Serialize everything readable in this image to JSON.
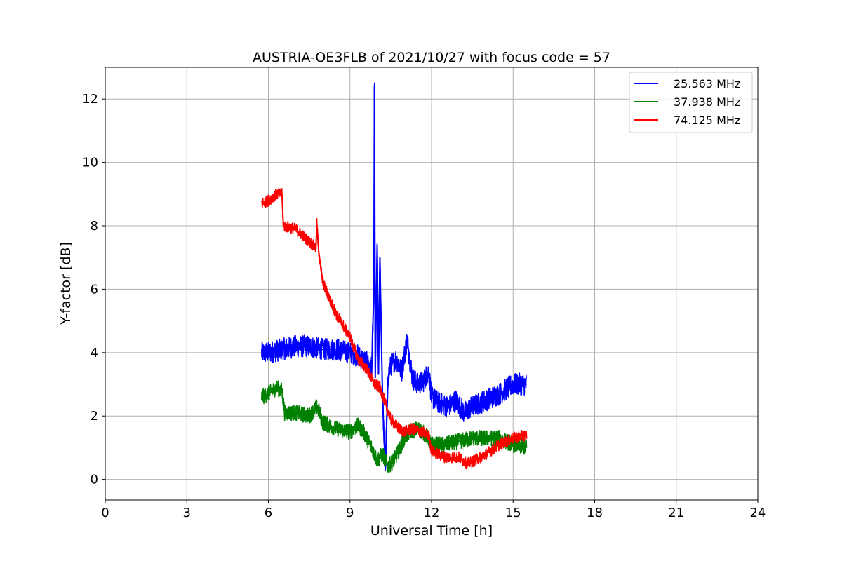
{
  "chart_data": {
    "type": "line",
    "title": "AUSTRIA-OE3FLB of 2021/10/27 with focus code = 57",
    "xlabel": "Universal Time [h]",
    "ylabel": "Y-factor [dB]",
    "xlim": [
      0,
      24
    ],
    "ylim": [
      -0.65,
      13
    ],
    "xticks": [
      0,
      3,
      6,
      9,
      12,
      15,
      18,
      21,
      24
    ],
    "yticks": [
      0,
      2,
      4,
      6,
      8,
      10,
      12
    ],
    "grid": true,
    "legend_position": "top-right",
    "series": [
      {
        "name": "25.563 MHz",
        "color": "#0000ff",
        "noise": 0.35,
        "x": [
          5.75,
          6.0,
          6.5,
          7.0,
          7.5,
          8.0,
          8.5,
          9.0,
          9.3,
          9.6,
          9.8,
          9.88,
          9.9,
          9.93,
          10.0,
          10.05,
          10.1,
          10.2,
          10.3,
          10.4,
          10.5,
          10.7,
          10.9,
          11.1,
          11.3,
          11.5,
          11.7,
          11.9,
          12.0,
          12.3,
          12.6,
          12.9,
          13.2,
          13.5,
          14.0,
          14.5,
          15.0,
          15.5
        ],
        "y": [
          4.0,
          4.0,
          4.1,
          4.2,
          4.2,
          4.1,
          4.1,
          4.0,
          3.9,
          3.7,
          3.5,
          6.0,
          12.4,
          3.2,
          7.4,
          3.3,
          7.0,
          2.5,
          0.3,
          3.2,
          3.6,
          3.8,
          3.4,
          4.4,
          3.2,
          3.0,
          3.1,
          3.4,
          2.6,
          2.4,
          2.3,
          2.5,
          2.1,
          2.3,
          2.5,
          2.7,
          3.0,
          3.0
        ]
      },
      {
        "name": "37.938 MHz",
        "color": "#008000",
        "noise": 0.25,
        "x": [
          5.75,
          6.0,
          6.3,
          6.5,
          6.6,
          7.0,
          7.5,
          7.8,
          8.0,
          8.5,
          9.0,
          9.3,
          9.5,
          9.8,
          10.0,
          10.2,
          10.4,
          10.6,
          10.8,
          11.0,
          11.2,
          11.5,
          11.8,
          12.0,
          12.5,
          13.0,
          13.5,
          14.0,
          14.5,
          15.0,
          15.5
        ],
        "y": [
          2.6,
          2.7,
          2.9,
          2.8,
          2.1,
          2.1,
          2.0,
          2.3,
          1.8,
          1.6,
          1.5,
          1.7,
          1.5,
          1.0,
          0.6,
          0.8,
          0.4,
          0.6,
          0.9,
          1.3,
          1.5,
          1.6,
          1.4,
          1.1,
          1.1,
          1.2,
          1.3,
          1.3,
          1.3,
          1.1,
          1.0
        ]
      },
      {
        "name": "74.125 MHz",
        "color": "#ff0000",
        "noise": 0.18,
        "x": [
          5.75,
          6.0,
          6.3,
          6.5,
          6.55,
          7.0,
          7.5,
          7.75,
          7.78,
          7.85,
          8.0,
          8.5,
          9.0,
          9.3,
          9.6,
          9.9,
          10.1,
          10.3,
          10.5,
          10.8,
          11.0,
          11.3,
          11.6,
          11.9,
          12.0,
          12.5,
          13.0,
          13.3,
          13.6,
          14.0,
          14.5,
          15.0,
          15.5
        ],
        "y": [
          8.7,
          8.8,
          9.0,
          9.0,
          8.0,
          7.9,
          7.5,
          7.3,
          8.1,
          7.2,
          6.2,
          5.2,
          4.5,
          3.8,
          3.5,
          3.0,
          2.9,
          2.4,
          1.9,
          1.6,
          1.5,
          1.6,
          1.5,
          1.4,
          0.9,
          0.7,
          0.7,
          0.5,
          0.6,
          0.8,
          1.1,
          1.3,
          1.4
        ]
      }
    ]
  }
}
